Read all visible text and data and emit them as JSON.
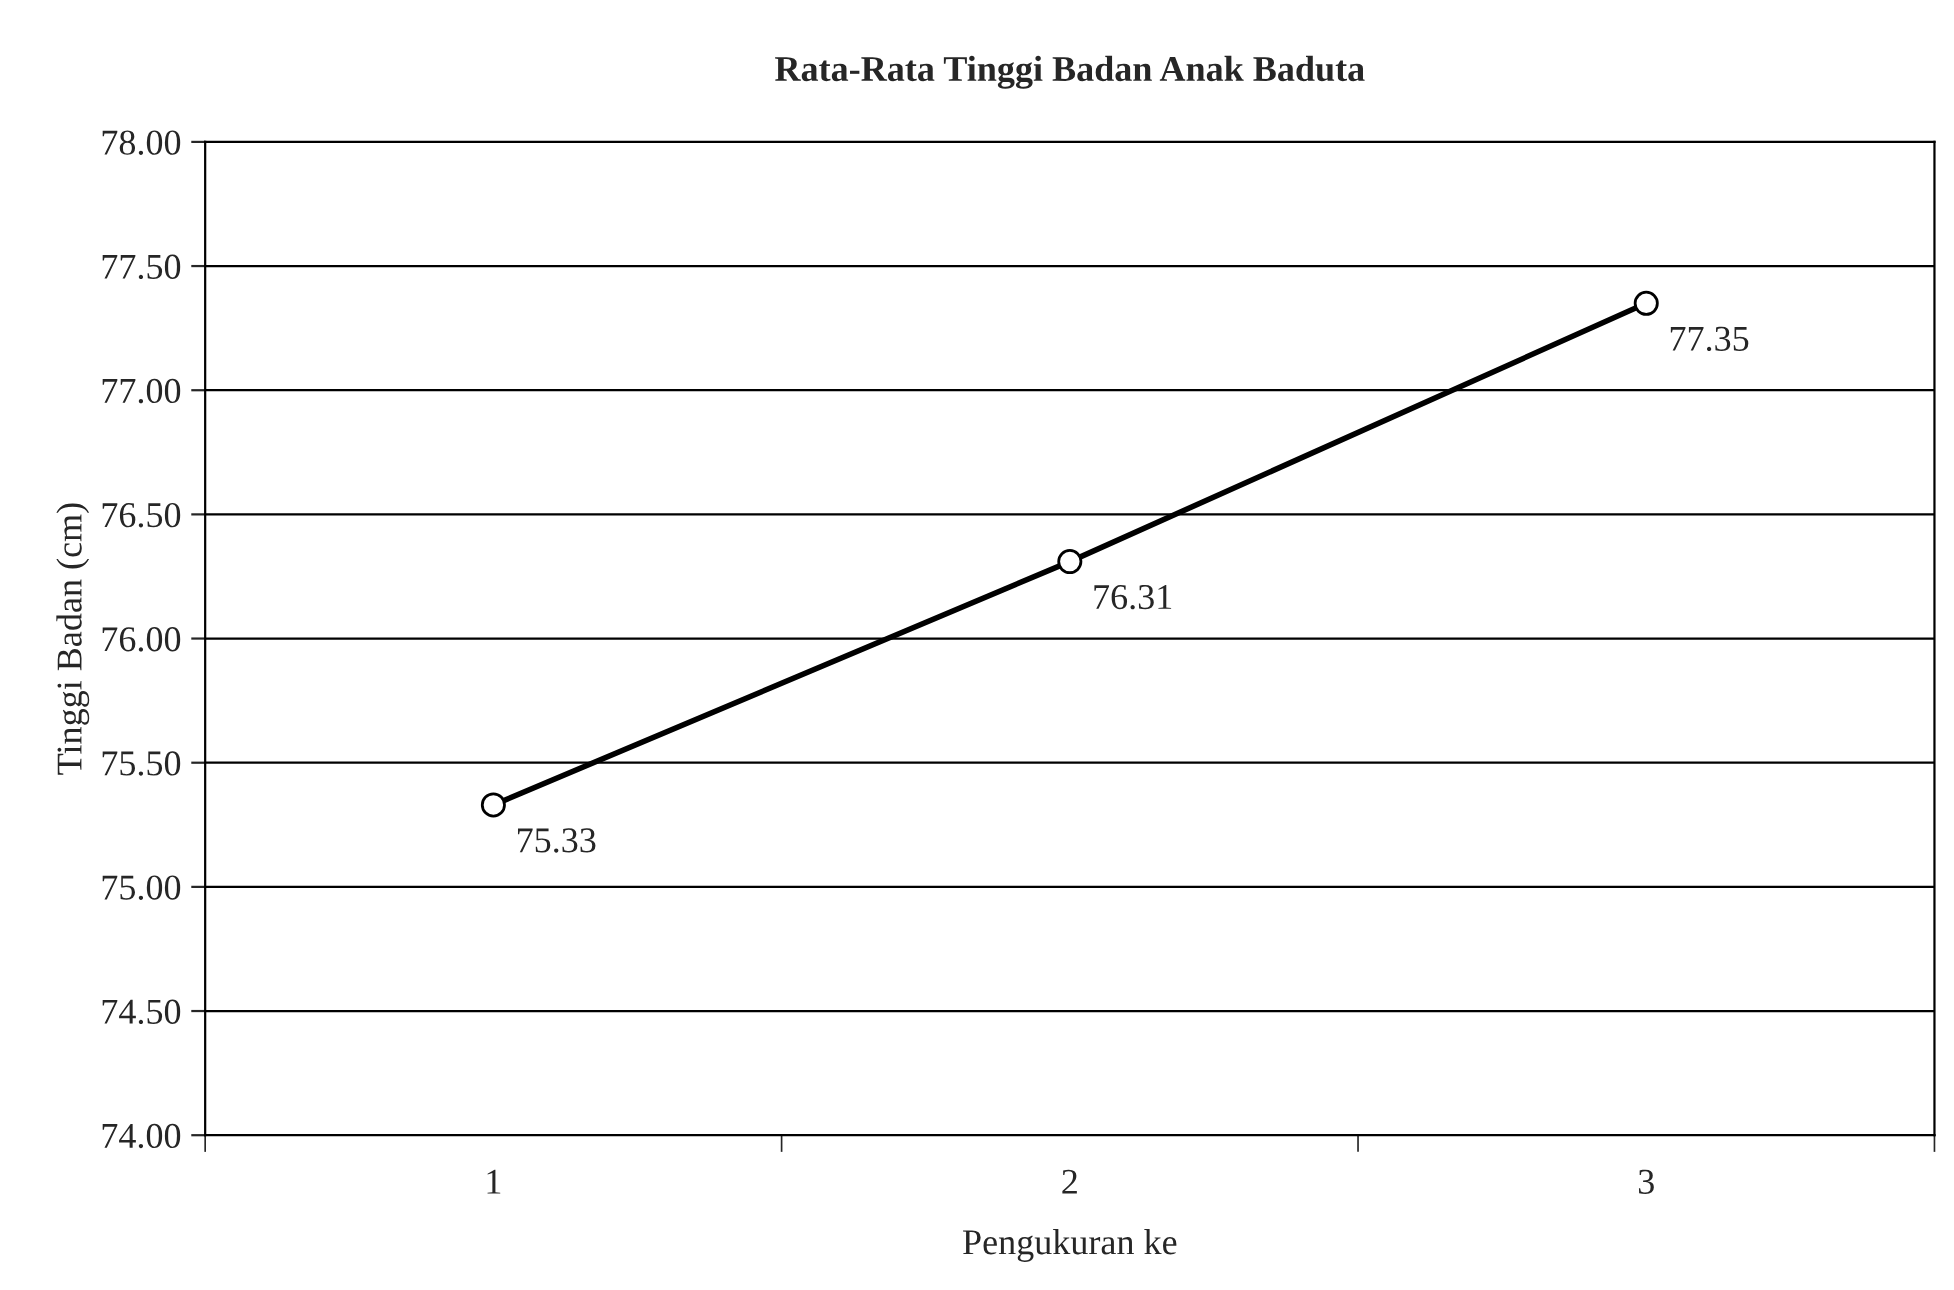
{
  "chart_data": {
    "type": "line",
    "title": "Rata-Rata Tinggi Badan Anak Baduta",
    "xlabel": "Pengukuran ke",
    "ylabel": "Tinggi Badan (cm)",
    "categories": [
      "1",
      "2",
      "3"
    ],
    "series": [
      {
        "color": "#000000",
        "values": [
          75.33,
          76.31,
          77.35
        ]
      }
    ],
    "ylim": [
      74,
      78
    ],
    "yticks": [
      {
        "value": 74,
        "label": "74.00"
      },
      {
        "value": 74.5,
        "label": "74.50"
      },
      {
        "value": 75,
        "label": "75.00"
      },
      {
        "value": 75.5,
        "label": "75.50"
      },
      {
        "value": 76,
        "label": "76.00"
      },
      {
        "value": 76.5,
        "label": "76.50"
      },
      {
        "value": 77,
        "label": "77.00"
      },
      {
        "value": 77.5,
        "label": "77.50"
      },
      {
        "value": 78,
        "label": "78.00"
      }
    ],
    "grid": "y",
    "legend": false,
    "marker": "circle",
    "line_style": "solid",
    "data_labels": true
  }
}
